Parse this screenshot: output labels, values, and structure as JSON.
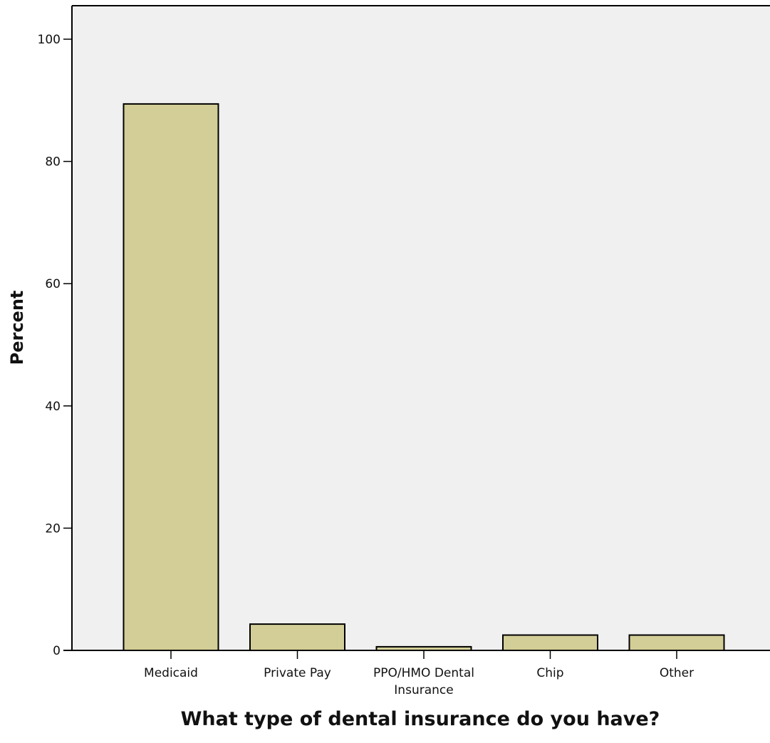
{
  "chart_data": {
    "type": "bar",
    "title": "",
    "xlabel": "What type of dental insurance do you have?",
    "ylabel": "Percent",
    "ylim": [
      0,
      100
    ],
    "yticks": [
      0,
      20,
      40,
      60,
      80,
      100
    ],
    "categories": [
      [
        "Medicaid"
      ],
      [
        "Private Pay"
      ],
      [
        "PPO/HMO Dental",
        "Insurance"
      ],
      [
        "Chip"
      ],
      [
        "Other"
      ]
    ],
    "values": [
      89.4,
      4.3,
      0.6,
      2.5,
      2.5
    ],
    "grid": false,
    "legend": "none",
    "colors": {
      "plot_background": "#f0f0f0",
      "bar_fill": "#d3ce97",
      "bar_stroke": "#000000",
      "axis": "#000000"
    }
  }
}
